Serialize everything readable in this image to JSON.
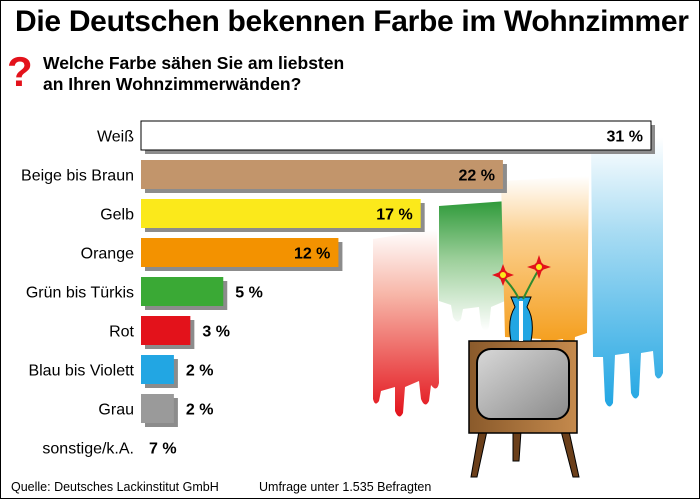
{
  "chart_data": {
    "type": "bar",
    "orientation": "horizontal",
    "title": "Die Deutschen bekennen Farbe im Wohnzimmer",
    "subtitle_line1": "Welche Farbe sähen Sie am liebsten",
    "subtitle_line2": "an Ihren Wohnzimmerwänden?",
    "categories": [
      "Weiß",
      "Beige bis Braun",
      "Gelb",
      "Orange",
      "Grün bis Türkis",
      "Rot",
      "Blau bis Violett",
      "Grau",
      "sonstige/k.A."
    ],
    "values": [
      31,
      22,
      17,
      12,
      5,
      3,
      2,
      2,
      7
    ],
    "value_labels": [
      "31 %",
      "22 %",
      "17 %",
      "12 %",
      "5 %",
      "3 %",
      "2 %",
      "2 %",
      "7 %"
    ],
    "colors": [
      "#ffffff",
      "#c2956b",
      "#fbe91b",
      "#f39200",
      "#3aa935",
      "#e3121b",
      "#22a6e3",
      "#9a9a9a",
      "#ffffff"
    ],
    "xlim": [
      0,
      31
    ],
    "grid": false,
    "legend": "none"
  },
  "question_mark": "?",
  "footer": {
    "source": "Quelle: Deutsches Lackinstitut GmbH",
    "survey": "Umfrage unter 1.535 Befragten"
  }
}
